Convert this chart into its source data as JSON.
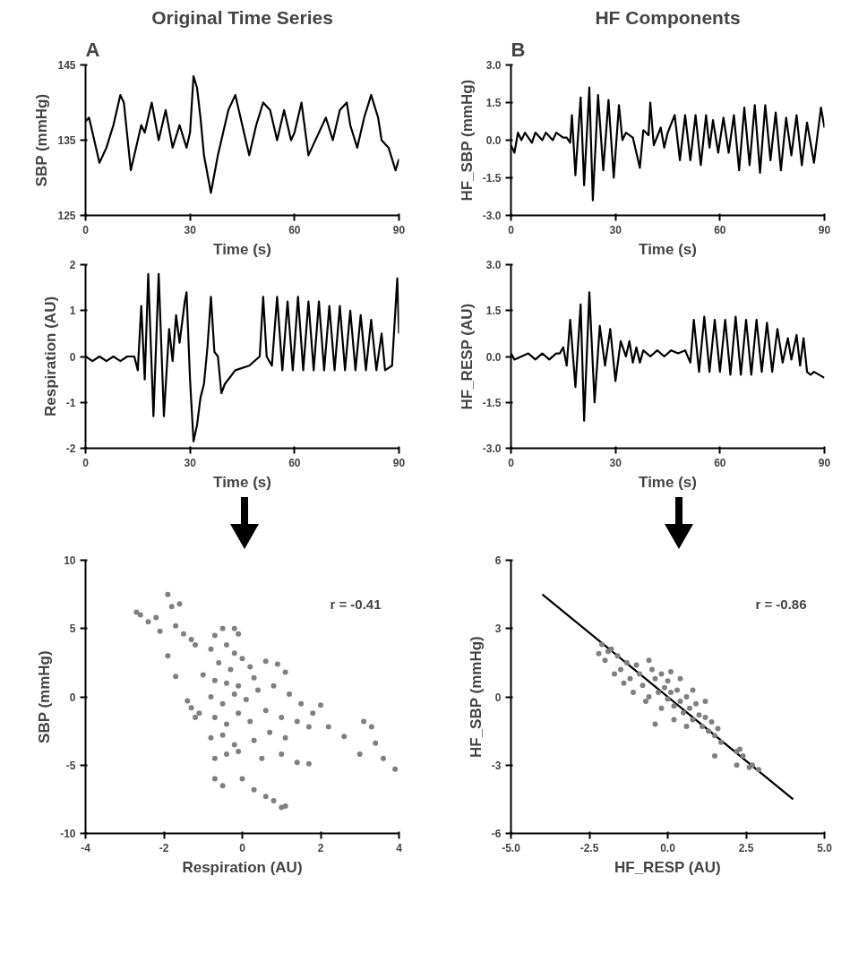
{
  "chart_data": [
    {
      "type": "line",
      "title": "Original Time Series",
      "annotations": [
        "A"
      ],
      "xlabel": "Time (s)",
      "ylabel": "SBP (mmHg)",
      "xlim": [
        0,
        90
      ],
      "xticks": [
        0,
        30,
        60,
        90
      ],
      "ylim": [
        125,
        145
      ],
      "yticks": [
        125,
        135,
        145
      ],
      "grid": false,
      "series": [
        {
          "color": "#000000",
          "x": [
            0,
            1,
            2,
            4,
            6,
            8,
            10,
            11,
            13,
            15,
            16,
            17,
            19,
            21,
            23,
            25,
            27,
            29,
            30,
            31,
            32,
            33,
            34,
            36,
            38,
            39,
            41,
            43,
            45,
            47,
            48,
            49,
            51,
            53,
            55,
            57,
            59,
            60,
            62,
            64,
            65,
            67,
            69,
            71,
            73,
            75,
            76,
            78,
            79,
            80,
            82,
            84,
            85,
            87,
            89,
            90
          ],
          "values": [
            137.5,
            138,
            136,
            132,
            134,
            137,
            141,
            140,
            131,
            135,
            137,
            136,
            140,
            135,
            139,
            134,
            137,
            134,
            136,
            143.5,
            142,
            138,
            133,
            128,
            133,
            135,
            139,
            141,
            137,
            133,
            135,
            137,
            140,
            139,
            135,
            139,
            135,
            136,
            140,
            133,
            134,
            136,
            138,
            135,
            139,
            140,
            137,
            134,
            136,
            138,
            141,
            138,
            135,
            134,
            131,
            132.5
          ]
        }
      ]
    },
    {
      "type": "line",
      "title": "HF Components",
      "annotations": [
        "B"
      ],
      "xlabel": "Time (s)",
      "ylabel": "HF_SBP (mmHg)",
      "xlim": [
        0,
        90
      ],
      "xticks": [
        0,
        30,
        60,
        90
      ],
      "ylim": [
        -3,
        3
      ],
      "yticks": [
        {
          "value": -3,
          "label": "-3.0"
        },
        {
          "value": -1.5,
          "label": "-1.5"
        },
        {
          "value": 0,
          "label": "0.0"
        },
        {
          "value": 1.5,
          "label": "1.5"
        },
        {
          "value": 3,
          "label": "3.0"
        }
      ],
      "grid": false,
      "series": [
        {
          "color": "#000000",
          "x": [
            0,
            1,
            2,
            3,
            4,
            6,
            7,
            9,
            10,
            12,
            13,
            15,
            16,
            17,
            17.5,
            18.5,
            20,
            21,
            22.5,
            23.5,
            25,
            26.5,
            28,
            29.5,
            31,
            32,
            33,
            35,
            37,
            38,
            39.5,
            40,
            41,
            43,
            44,
            45,
            47,
            48.5,
            50,
            51.5,
            53,
            54.5,
            56,
            57,
            58,
            59.5,
            61,
            62.5,
            64,
            65.5,
            67,
            68.5,
            70,
            71.5,
            73,
            74.5,
            76,
            77.5,
            79,
            80.5,
            82,
            83.5,
            85,
            87,
            89,
            90
          ],
          "values": [
            -0.2,
            -0.5,
            0.3,
            0,
            0.3,
            -0.1,
            0.3,
            0,
            0.3,
            0,
            0.3,
            0.1,
            0.1,
            -0.1,
            1.0,
            -1.4,
            1.7,
            -1.8,
            2.1,
            -2.4,
            1.8,
            -1.2,
            1.6,
            -1.5,
            1.4,
            0,
            0.3,
            0.1,
            -1.1,
            0.4,
            0.2,
            1.5,
            -0.2,
            0.5,
            -0.3,
            0.3,
            1.0,
            -0.8,
            1.0,
            -0.8,
            1.0,
            -1.0,
            1.0,
            -0.3,
            0.8,
            -0.5,
            0.9,
            -0.5,
            1.0,
            -1.2,
            1.3,
            -1.0,
            1.4,
            -1.3,
            1.4,
            -0.8,
            1.1,
            -1.2,
            0.9,
            -0.6,
            1.0,
            -1.0,
            0.7,
            -0.9,
            1.3,
            0.5
          ]
        }
      ]
    },
    {
      "type": "line",
      "xlabel": "Time (s)",
      "ylabel": "Respiration (AU)",
      "xlim": [
        0,
        90
      ],
      "xticks": [
        0,
        30,
        60,
        90
      ],
      "ylim": [
        -2,
        2
      ],
      "yticks": [
        -2,
        -1,
        0,
        1,
        2
      ],
      "grid": false,
      "series": [
        {
          "color": "#000000",
          "x": [
            0,
            2,
            4,
            6,
            8,
            10,
            12,
            14,
            15,
            16,
            17,
            18,
            19.5,
            21,
            22.5,
            24,
            25,
            26,
            27,
            28.5,
            29,
            30,
            31,
            32,
            33,
            34,
            35,
            36,
            37,
            38,
            39,
            40,
            43,
            47,
            50,
            51,
            52,
            53.5,
            55,
            56.5,
            58,
            59.5,
            61,
            62.5,
            64,
            65.5,
            67,
            68.5,
            70,
            71.5,
            73,
            74.5,
            76,
            77.5,
            79,
            80.5,
            82,
            83.5,
            85,
            86,
            88,
            89.5,
            90
          ],
          "values": [
            0,
            -0.1,
            0,
            -0.1,
            0,
            -0.1,
            0,
            0,
            -0.3,
            1.1,
            -0.5,
            1.8,
            -1.3,
            1.8,
            -1.3,
            0.6,
            -0.1,
            0.9,
            0.3,
            1.2,
            1.4,
            -0.5,
            -1.85,
            -1.5,
            -0.9,
            -0.6,
            0.2,
            1.3,
            0.1,
            0,
            -0.8,
            -0.6,
            -0.3,
            -0.2,
            0,
            1.3,
            0,
            -0.2,
            1.3,
            -0.3,
            1.2,
            -0.3,
            1.3,
            -0.3,
            1.2,
            -0.3,
            1.2,
            -0.3,
            1.1,
            -0.3,
            1.1,
            -0.3,
            1.0,
            -0.3,
            0.9,
            -0.3,
            0.8,
            -0.3,
            0.5,
            -0.3,
            -0.2,
            1.7,
            0.5
          ]
        }
      ]
    },
    {
      "type": "line",
      "xlabel": "Time (s)",
      "ylabel": "HF_RESP (AU)",
      "xlim": [
        0,
        90
      ],
      "xticks": [
        0,
        30,
        60,
        90
      ],
      "ylim": [
        -3,
        3
      ],
      "yticks": [
        {
          "value": -3,
          "label": "-3.0"
        },
        {
          "value": -1.5,
          "label": "-1.5"
        },
        {
          "value": 0,
          "label": "0.0"
        },
        {
          "value": 1.5,
          "label": "1.5"
        },
        {
          "value": 3,
          "label": "3.0"
        }
      ],
      "grid": false,
      "series": [
        {
          "color": "#000000",
          "x": [
            0,
            1,
            3,
            5,
            7,
            9,
            11,
            13,
            14,
            15,
            16,
            17,
            18.5,
            20,
            21,
            22.5,
            24,
            25.5,
            27,
            28.5,
            30,
            31.5,
            33,
            34,
            35,
            36,
            37,
            38,
            40,
            42,
            44,
            46,
            48,
            50,
            51.5,
            52.5,
            54,
            55.5,
            57,
            58.5,
            60,
            61.5,
            63,
            64.5,
            66,
            67.5,
            69,
            70.5,
            72,
            73.5,
            75,
            76.5,
            78,
            79.5,
            80.5,
            82,
            83,
            84,
            85,
            86,
            87,
            90
          ],
          "values": [
            0.1,
            -0.1,
            0,
            0.1,
            -0.1,
            0.1,
            -0.1,
            0.1,
            0.1,
            0.3,
            -0.3,
            1.2,
            -1.0,
            1.7,
            -2.1,
            2.1,
            -1.5,
            1.0,
            -0.3,
            0.9,
            -0.8,
            0.5,
            0,
            0.5,
            -0.2,
            0.3,
            -0.2,
            0.2,
            0,
            0.2,
            0,
            0.2,
            0.1,
            0.2,
            -0.2,
            1.2,
            -0.5,
            1.3,
            -0.5,
            1.2,
            -0.5,
            1.2,
            -0.6,
            1.3,
            -0.6,
            1.2,
            -0.6,
            1.2,
            -0.5,
            1.1,
            -0.5,
            0.9,
            -0.2,
            0.6,
            -0.1,
            0.7,
            -0.3,
            0.6,
            -0.5,
            -0.6,
            -0.5,
            -0.7
          ]
        }
      ]
    },
    {
      "type": "scatter",
      "annotations": [
        "r = -0.41"
      ],
      "xlabel": "Respiration (AU)",
      "ylabel": "SBP (mmHg)",
      "xlim": [
        -4,
        4
      ],
      "xticks": [
        -4,
        -2,
        0,
        2,
        4
      ],
      "ylim": [
        -10,
        10
      ],
      "yticks": [
        -10,
        -5,
        0,
        5,
        10
      ],
      "grid": false,
      "series": [
        {
          "color": "#808080",
          "marker": "circle",
          "x": [
            -2.7,
            -2.6,
            -2.4,
            -2.2,
            -2.1,
            -1.9,
            -1.8,
            -1.6,
            -1.7,
            -1.5,
            -1.3,
            -1.2,
            -1.9,
            -1.7,
            -1.4,
            -1.3,
            -1.1,
            -1.0,
            -1.2,
            -0.7,
            -0.5,
            -0.2,
            -0.1,
            -0.8,
            -0.4,
            -0.2,
            -0.6,
            -0.3,
            0.0,
            0.2,
            -0.7,
            -0.4,
            -0.1,
            0.3,
            0.6,
            0.9,
            1.1,
            -0.8,
            -0.5,
            -0.2,
            0.1,
            0.4,
            0.8,
            1.2,
            1.5,
            -0.7,
            -0.4,
            -0.1,
            0.2,
            0.6,
            1.0,
            1.4,
            1.8,
            2.0,
            -0.8,
            -0.5,
            -0.2,
            0.3,
            0.7,
            1.1,
            1.7,
            2.2,
            2.6,
            -0.7,
            -0.4,
            -0.1,
            0.5,
            1.0,
            1.4,
            1.7,
            3.1,
            3.3,
            3.4,
            3.0,
            3.6,
            3.9,
            -0.7,
            -0.5,
            0.0,
            0.3,
            0.6,
            0.8,
            1.0,
            1.1
          ],
          "values": [
            6.2,
            6.0,
            5.5,
            5.8,
            4.8,
            7.5,
            6.6,
            6.8,
            5.2,
            4.6,
            4.2,
            3.8,
            3.0,
            1.5,
            -0.3,
            -0.8,
            -1.2,
            1.6,
            -1.5,
            4.5,
            5.0,
            5.0,
            4.6,
            3.5,
            3.8,
            3.2,
            2.5,
            2.0,
            2.8,
            2.2,
            1.2,
            1.0,
            0.8,
            1.4,
            2.6,
            2.4,
            1.8,
            0.0,
            -0.5,
            0.2,
            -0.2,
            0.5,
            0.8,
            0.2,
            -0.5,
            -1.5,
            -2.0,
            -1.2,
            -1.8,
            -1.0,
            -1.5,
            -1.8,
            -1.2,
            -0.6,
            -3.0,
            -2.8,
            -3.5,
            -3.2,
            -2.6,
            -3.0,
            -2.2,
            -2.2,
            -2.9,
            -4.5,
            -4.2,
            -4.0,
            -4.5,
            -4.2,
            -4.8,
            -4.9,
            -1.8,
            -2.2,
            -3.4,
            -4.2,
            -4.5,
            -5.3,
            -6.0,
            -6.5,
            -6.0,
            -6.8,
            -7.3,
            -7.6,
            -8.1,
            -8.0
          ]
        }
      ]
    },
    {
      "type": "scatter",
      "annotations": [
        "r = -0.86"
      ],
      "xlabel": "HF_RESP (AU)",
      "ylabel": "HF_SBP (mmHg)",
      "xlim": [
        -5,
        5
      ],
      "xticks": [
        {
          "value": -5,
          "label": "-5.0"
        },
        {
          "value": -2.5,
          "label": "-2.5"
        },
        {
          "value": 0,
          "label": "0.0"
        },
        {
          "value": 2.5,
          "label": "2.5"
        },
        {
          "value": 5,
          "label": "5.0"
        }
      ],
      "ylim": [
        -6,
        6
      ],
      "yticks": [
        -6,
        -3,
        0,
        3,
        6
      ],
      "grid": false,
      "series": [
        {
          "color": "#808080",
          "marker": "circle",
          "x": [
            -2.1,
            -1.9,
            -2.0,
            -1.6,
            -1.5,
            -1.3,
            -1.2,
            -1.0,
            -0.9,
            -0.8,
            -0.6,
            -0.5,
            -0.4,
            -0.3,
            -0.2,
            -0.1,
            0.0,
            0.0,
            0.1,
            0.2,
            0.3,
            0.4,
            0.5,
            0.6,
            0.7,
            0.8,
            0.9,
            1.0,
            1.1,
            1.2,
            1.3,
            1.4,
            1.5,
            1.6,
            1.7,
            -0.7,
            -0.2,
            0.2,
            0.6,
            -1.1,
            -0.6,
            0.4,
            0.8,
            1.2,
            -1.4,
            -1.7,
            2.2,
            2.3,
            2.4,
            2.7,
            2.9,
            2.2,
            2.6,
            1.5,
            -0.4,
            -2.2,
            -1.8,
            0.1
          ],
          "values": [
            2.3,
            2.0,
            1.6,
            1.8,
            1.2,
            1.5,
            0.8,
            1.4,
            1.0,
            0.5,
            1.6,
            1.2,
            0.8,
            0.2,
            1.0,
            0.4,
            -0.1,
            0.7,
            0.2,
            -0.4,
            0.3,
            -0.2,
            -0.7,
            0.0,
            -0.5,
            -1.0,
            -0.3,
            -0.8,
            -1.3,
            -0.9,
            -1.5,
            -1.1,
            -1.7,
            -1.4,
            -2.0,
            -0.2,
            -0.5,
            -1.0,
            -1.3,
            0.2,
            0.0,
            0.8,
            0.3,
            -0.2,
            0.6,
            1.0,
            -2.4,
            -2.3,
            -2.6,
            -3.0,
            -3.2,
            -3.0,
            -3.1,
            -2.6,
            -1.2,
            1.9,
            2.1,
            1.1
          ]
        },
        {
          "type": "line",
          "color": "#000000",
          "x": [
            -4,
            4
          ],
          "values": [
            4.5,
            -4.5
          ]
        }
      ]
    }
  ]
}
